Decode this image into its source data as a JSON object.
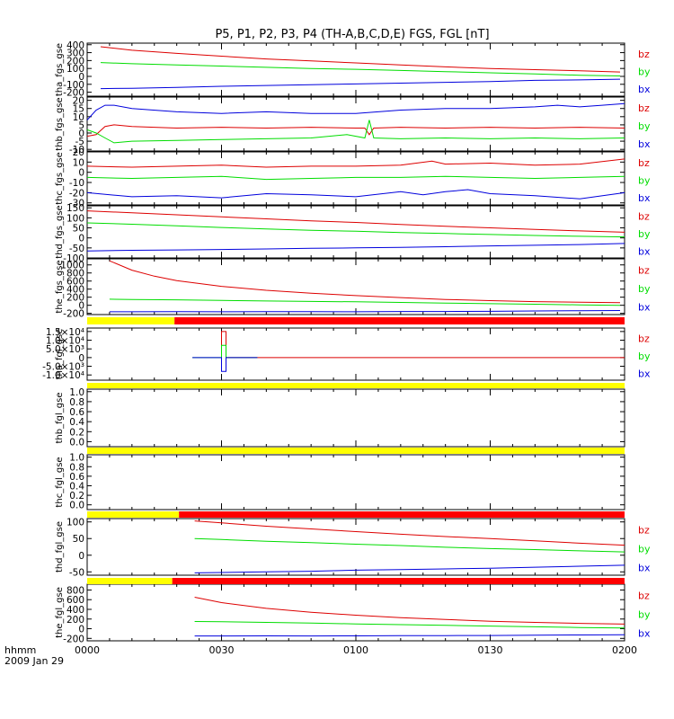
{
  "title": "P5, P1, P2, P3, P4 (TH-A,B,C,D,E) FGS, FGL [nT]",
  "colors": {
    "bz": "#dd0000",
    "by": "#00dd00",
    "bx": "#0000dd",
    "bar_yellow": "#ffff00",
    "bar_red": "#ff0000"
  },
  "time_axis": {
    "ticks": [
      "0000",
      "0030",
      "0100",
      "0130",
      "0200"
    ],
    "unit_label": "hhmm",
    "date_label": "2009 Jan 29",
    "range_minutes": [
      0,
      120
    ]
  },
  "chart_data": [
    {
      "type": "line",
      "name": "tha_fgs_gse",
      "ylabel": "tha_fgs_gse",
      "ylim": [
        -250,
        420
      ],
      "yticks": [
        -200,
        -100,
        0,
        100,
        200,
        300,
        400
      ],
      "ytick_labels": [
        "-200",
        "-100",
        "0",
        "100",
        "200",
        "300",
        "400"
      ],
      "legend": [
        "bz",
        "by",
        "bx"
      ],
      "series": [
        {
          "name": "bz",
          "color": "#dd0000",
          "x": [
            3,
            10,
            20,
            30,
            40,
            50,
            60,
            70,
            80,
            90,
            100,
            110,
            119
          ],
          "y": [
            375,
            330,
            290,
            255,
            220,
            195,
            170,
            145,
            120,
            100,
            85,
            70,
            55
          ]
        },
        {
          "name": "by",
          "color": "#00dd00",
          "x": [
            3,
            10,
            20,
            30,
            40,
            50,
            60,
            70,
            80,
            90,
            100,
            110,
            119
          ],
          "y": [
            175,
            160,
            145,
            130,
            115,
            100,
            90,
            75,
            60,
            45,
            30,
            15,
            5
          ]
        },
        {
          "name": "bx",
          "color": "#0000dd",
          "x": [
            3,
            10,
            20,
            30,
            40,
            50,
            60,
            70,
            80,
            90,
            100,
            110,
            119
          ],
          "y": [
            -155,
            -150,
            -140,
            -125,
            -115,
            -105,
            -95,
            -85,
            -75,
            -65,
            -50,
            -45,
            -35
          ]
        }
      ]
    },
    {
      "type": "line",
      "name": "thb_fgs_gse",
      "ylabel": "thb_fgs_gse",
      "ylim": [
        -11,
        22
      ],
      "yticks": [
        -10,
        -5,
        0,
        5,
        10,
        15,
        20
      ],
      "ytick_labels": [
        "-10",
        "-5",
        "0",
        "5",
        "10",
        "15",
        "20"
      ],
      "legend": [
        "bz",
        "by",
        "bx"
      ],
      "series": [
        {
          "name": "bz",
          "color": "#dd0000",
          "x": [
            0,
            2,
            4,
            6,
            10,
            20,
            30,
            40,
            50,
            60,
            62,
            63,
            64,
            70,
            80,
            90,
            100,
            110,
            120
          ],
          "y": [
            -2,
            -1,
            4,
            5,
            4,
            3,
            3.5,
            3,
            3.5,
            3,
            3,
            -1,
            3,
            3.5,
            3,
            3.5,
            3,
            3.5,
            3
          ]
        },
        {
          "name": "by",
          "color": "#00dd00",
          "x": [
            0,
            2,
            4,
            6,
            10,
            20,
            30,
            40,
            50,
            58,
            62,
            63,
            64,
            70,
            80,
            90,
            100,
            110,
            120
          ],
          "y": [
            2,
            0,
            -3,
            -6,
            -5,
            -4.5,
            -4,
            -3.5,
            -3,
            -1,
            -3,
            8,
            -3,
            -3.5,
            -3,
            -3.5,
            -3,
            -3.5,
            -3
          ]
        },
        {
          "name": "bx",
          "color": "#0000dd",
          "x": [
            0,
            2,
            4,
            6,
            10,
            20,
            30,
            40,
            50,
            60,
            70,
            80,
            90,
            100,
            105,
            110,
            115,
            120
          ],
          "y": [
            8,
            14,
            17,
            17,
            15,
            13,
            12,
            13,
            12,
            12,
            14,
            15,
            15,
            16,
            17,
            16,
            17,
            18
          ]
        }
      ]
    },
    {
      "type": "line",
      "name": "thc_fgs_gse",
      "ylabel": "thc_fgs_gse",
      "ylim": [
        -32,
        20
      ],
      "yticks": [
        -30,
        -20,
        -10,
        0,
        10,
        20
      ],
      "ytick_labels": [
        "-30",
        "-20",
        "-10",
        "0",
        "10",
        "20"
      ],
      "legend": [
        "bz",
        "by",
        "bx"
      ],
      "series": [
        {
          "name": "bz",
          "color": "#dd0000",
          "x": [
            0,
            10,
            20,
            30,
            40,
            50,
            60,
            70,
            77,
            80,
            90,
            100,
            110,
            120
          ],
          "y": [
            6,
            5,
            6,
            7,
            5,
            6,
            6,
            7,
            11,
            8,
            9,
            7,
            8,
            13
          ]
        },
        {
          "name": "by",
          "color": "#00dd00",
          "x": [
            0,
            10,
            20,
            30,
            40,
            50,
            60,
            70,
            80,
            90,
            100,
            110,
            120
          ],
          "y": [
            -5,
            -6,
            -5,
            -4,
            -7,
            -6,
            -5,
            -5,
            -4,
            -5,
            -6,
            -5,
            -4
          ]
        },
        {
          "name": "bx",
          "color": "#0000dd",
          "x": [
            0,
            10,
            20,
            30,
            40,
            50,
            60,
            70,
            75,
            80,
            85,
            90,
            100,
            110,
            120
          ],
          "y": [
            -20,
            -24,
            -23,
            -25,
            -21,
            -22,
            -24,
            -19,
            -22,
            -19,
            -17,
            -21,
            -23,
            -26,
            -20
          ]
        }
      ]
    },
    {
      "type": "line",
      "name": "thd_fgs_gse",
      "ylabel": "thd_fgs_gse",
      "ylim": [
        -100,
        160
      ],
      "yticks": [
        -100,
        -50,
        0,
        50,
        100,
        150
      ],
      "ytick_labels": [
        "-100",
        "-50",
        "0",
        "50",
        "100",
        "150"
      ],
      "legend": [
        "bz",
        "by",
        "bx"
      ],
      "series": [
        {
          "name": "bz",
          "color": "#dd0000",
          "x": [
            0,
            10,
            20,
            30,
            40,
            50,
            60,
            70,
            80,
            90,
            100,
            110,
            120
          ],
          "y": [
            135,
            125,
            115,
            105,
            95,
            85,
            77,
            67,
            58,
            50,
            42,
            35,
            28
          ]
        },
        {
          "name": "by",
          "color": "#00dd00",
          "x": [
            0,
            10,
            20,
            30,
            40,
            50,
            60,
            70,
            80,
            90,
            100,
            110,
            120
          ],
          "y": [
            75,
            68,
            60,
            52,
            45,
            38,
            33,
            27,
            22,
            17,
            12,
            8,
            5
          ]
        },
        {
          "name": "bx",
          "color": "#0000dd",
          "x": [
            0,
            10,
            20,
            30,
            40,
            50,
            60,
            70,
            80,
            90,
            100,
            110,
            120
          ],
          "y": [
            -65,
            -62,
            -60,
            -58,
            -55,
            -52,
            -50,
            -47,
            -44,
            -40,
            -37,
            -33,
            -28
          ]
        }
      ]
    },
    {
      "type": "line",
      "name": "the_fgs_gse",
      "ylabel": "the_fgs_gse",
      "ylim": [
        -230,
        1150
      ],
      "yticks": [
        -200,
        0,
        200,
        400,
        600,
        800,
        1000
      ],
      "ytick_labels": [
        "-200",
        "0",
        "200",
        "400",
        "600",
        "800",
        "1000"
      ],
      "legend": [
        "bz",
        "by",
        "bx"
      ],
      "series": [
        {
          "name": "bz",
          "color": "#dd0000",
          "x": [
            5,
            10,
            15,
            20,
            30,
            40,
            50,
            60,
            70,
            80,
            90,
            100,
            110,
            119
          ],
          "y": [
            1100,
            870,
            720,
            610,
            470,
            370,
            300,
            240,
            190,
            145,
            115,
            90,
            75,
            65
          ]
        },
        {
          "name": "by",
          "color": "#00dd00",
          "x": [
            5,
            10,
            20,
            30,
            40,
            50,
            60,
            70,
            80,
            90,
            100,
            110,
            119
          ],
          "y": [
            150,
            145,
            135,
            120,
            105,
            95,
            85,
            70,
            55,
            40,
            25,
            10,
            0
          ]
        },
        {
          "name": "bx",
          "color": "#0000dd",
          "x": [
            5,
            10,
            20,
            30,
            40,
            50,
            60,
            70,
            80,
            90,
            100,
            110,
            119
          ],
          "y": [
            -160,
            -160,
            -158,
            -160,
            -158,
            -158,
            -160,
            -155,
            -155,
            -150,
            -140,
            -135,
            -130
          ]
        }
      ]
    },
    {
      "type": "line",
      "name": "tha_fgl_gse",
      "ylabel": "tha_fgl_gse",
      "ylim": [
        -13000,
        17000
      ],
      "yticks": [
        -10000,
        -5000,
        0,
        5000,
        10000,
        15000
      ],
      "ytick_labels": [
        "-1.0×10⁴",
        "-5.0×10³",
        "0",
        "5.0×10³",
        "1.0×10⁴",
        "1.5×10⁴"
      ],
      "legend": [
        "bz",
        "by",
        "bx"
      ],
      "series": [
        {
          "name": "bz",
          "color": "#dd0000",
          "x": [
            30,
            30.01,
            31,
            31.01,
            120
          ],
          "y": [
            0,
            15000,
            15000,
            0,
            0
          ]
        },
        {
          "name": "by",
          "color": "#00dd00",
          "x": [
            23.5,
            30,
            30.01,
            31,
            31.01,
            38
          ],
          "y": [
            0,
            0,
            7000,
            7000,
            0,
            0
          ]
        },
        {
          "name": "bx",
          "color": "#0000dd",
          "x": [
            23.5,
            30,
            30.01,
            31,
            31.01,
            38
          ],
          "y": [
            0,
            0,
            -8000,
            -8000,
            0,
            0
          ]
        }
      ]
    },
    {
      "type": "line",
      "name": "thb_fgl_gse",
      "ylabel": "thb_fgl_gse",
      "ylim": [
        -0.1,
        1.05
      ],
      "yticks": [
        0,
        0.2,
        0.4,
        0.6,
        0.8,
        1.0
      ],
      "ytick_labels": [
        "0.0",
        "0.2",
        "0.4",
        "0.6",
        "0.8",
        "1.0"
      ],
      "legend": [],
      "series": []
    },
    {
      "type": "line",
      "name": "thc_fgl_gse",
      "ylabel": "thc_fgl_gse",
      "ylim": [
        -0.1,
        1.05
      ],
      "yticks": [
        0,
        0.2,
        0.4,
        0.6,
        0.8,
        1.0
      ],
      "ytick_labels": [
        "0.0",
        "0.2",
        "0.4",
        "0.6",
        "0.8",
        "1.0"
      ],
      "legend": [],
      "series": []
    },
    {
      "type": "line",
      "name": "thd_fgl_gse",
      "ylabel": "thd_fgl_gse",
      "ylim": [
        -60,
        110
      ],
      "yticks": [
        -50,
        0,
        50,
        100
      ],
      "ytick_labels": [
        "-50",
        "0",
        "50",
        "100"
      ],
      "legend": [
        "bz",
        "by",
        "bx"
      ],
      "series": [
        {
          "name": "bz",
          "color": "#dd0000",
          "x": [
            24,
            30,
            40,
            50,
            60,
            70,
            80,
            90,
            100,
            110,
            120
          ],
          "y": [
            103,
            97,
            87,
            79,
            71,
            63,
            56,
            50,
            43,
            36,
            30
          ]
        },
        {
          "name": "by",
          "color": "#00dd00",
          "x": [
            24,
            30,
            40,
            50,
            60,
            70,
            80,
            90,
            100,
            110,
            120
          ],
          "y": [
            50,
            47,
            42,
            38,
            33,
            29,
            24,
            20,
            17,
            13,
            10
          ]
        },
        {
          "name": "bx",
          "color": "#0000dd",
          "x": [
            24,
            30,
            40,
            50,
            60,
            70,
            80,
            90,
            100,
            110,
            120
          ],
          "y": [
            -53,
            -52,
            -50,
            -48,
            -45,
            -43,
            -41,
            -39,
            -36,
            -33,
            -30
          ]
        }
      ]
    },
    {
      "type": "line",
      "name": "the_fgl_gse",
      "ylabel": "the_fgl_gse",
      "ylim": [
        -250,
        920
      ],
      "yticks": [
        -200,
        0,
        200,
        400,
        600,
        800
      ],
      "ytick_labels": [
        "-200",
        "0",
        "200",
        "400",
        "600",
        "800"
      ],
      "legend": [
        "bz",
        "by",
        "bx"
      ],
      "series": [
        {
          "name": "bz",
          "color": "#dd0000",
          "x": [
            24,
            30,
            40,
            50,
            60,
            70,
            80,
            90,
            100,
            110,
            120
          ],
          "y": [
            650,
            540,
            420,
            340,
            280,
            230,
            190,
            155,
            130,
            110,
            95
          ]
        },
        {
          "name": "by",
          "color": "#00dd00",
          "x": [
            24,
            30,
            40,
            50,
            60,
            70,
            80,
            90,
            100,
            110,
            120
          ],
          "y": [
            150,
            145,
            130,
            115,
            100,
            85,
            70,
            55,
            40,
            25,
            15
          ]
        },
        {
          "name": "bx",
          "color": "#0000dd",
          "x": [
            24,
            30,
            40,
            50,
            60,
            70,
            80,
            90,
            100,
            110,
            120
          ],
          "y": [
            -150,
            -150,
            -148,
            -150,
            -148,
            -145,
            -143,
            -140,
            -135,
            -130,
            -125
          ]
        }
      ]
    }
  ],
  "mode_bars": [
    {
      "name": "the-mode-bar",
      "segments": [
        {
          "x0": 0,
          "x1": 19.5,
          "color": "#ffff00"
        },
        {
          "x0": 19.5,
          "x1": 120,
          "color": "#ff0000"
        }
      ]
    },
    {
      "name": "thb-mode-bar",
      "segments": [
        {
          "x0": 0,
          "x1": 120,
          "color": "#ffff00"
        }
      ]
    },
    {
      "name": "thc-mode-bar",
      "segments": [
        {
          "x0": 0,
          "x1": 120,
          "color": "#ffff00"
        }
      ]
    },
    {
      "name": "thd-mode-bar",
      "segments": [
        {
          "x0": 0,
          "x1": 20.5,
          "color": "#ffff00"
        },
        {
          "x0": 20.5,
          "x1": 120,
          "color": "#ff0000"
        }
      ]
    },
    {
      "name": "the-fgl-mode-bar",
      "segments": [
        {
          "x0": 0,
          "x1": 19,
          "color": "#ffff00"
        },
        {
          "x0": 19,
          "x1": 120,
          "color": "#ff0000"
        }
      ]
    }
  ]
}
